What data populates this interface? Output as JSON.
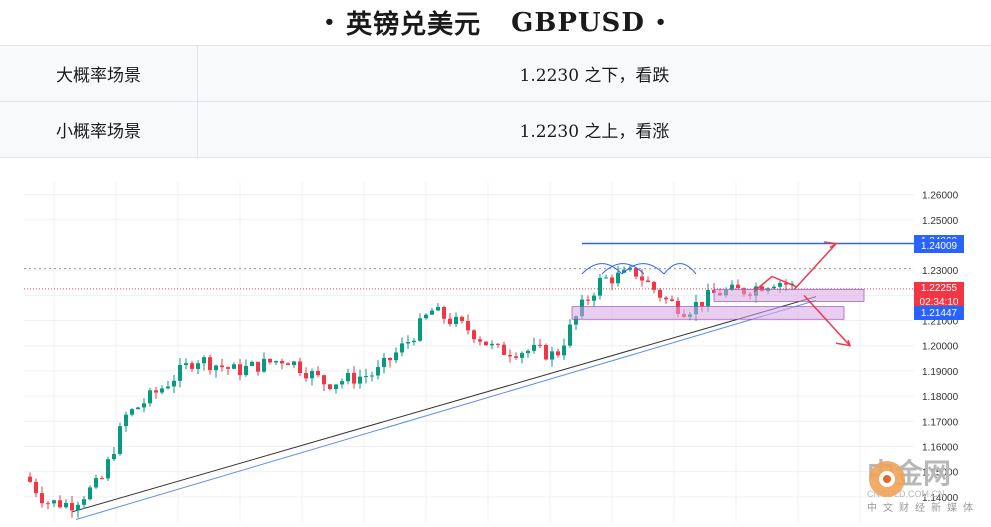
{
  "header": {
    "title": "英镑兑美元",
    "symbol": "GBPUSD",
    "dot": "•"
  },
  "scenarios": [
    {
      "label": "大概率场景",
      "text": "1.2230 之下，看跌"
    },
    {
      "label": "小概率场景",
      "text": "1.2230 之上，看涨"
    }
  ],
  "chart_data": {
    "type": "candlestick",
    "symbol": "GBPUSD",
    "ylim": [
      1.13,
      1.265
    ],
    "y_ticks": [
      "1.26000",
      "1.25000",
      "1.23000",
      "1.22000",
      "1.21000",
      "1.20000",
      "1.19000",
      "1.18000",
      "1.17000",
      "1.16000",
      "1.15000",
      "1.14000"
    ],
    "price_labels": [
      {
        "value": "1.24060",
        "color": "#2962ff"
      },
      {
        "value": "1.24009",
        "color": "#2962ff"
      },
      {
        "value": "1.22255",
        "color": "#f23645"
      },
      {
        "value": "02:34:10",
        "color": "#f23645"
      },
      {
        "value": "1.21447",
        "color": "#2962ff"
      }
    ],
    "resistance": 1.2406,
    "current": 1.22255,
    "support": 1.21447
  },
  "watermark": {
    "brand": "中金网",
    "domain": "CNGOLD.COM.CN",
    "tagline": "中文财经新媒体"
  },
  "colors": {
    "up": "#089981",
    "down": "#f23645",
    "zone": "#d9a6e6",
    "trend_blue": "#5b8def",
    "trend_black": "#333333"
  }
}
